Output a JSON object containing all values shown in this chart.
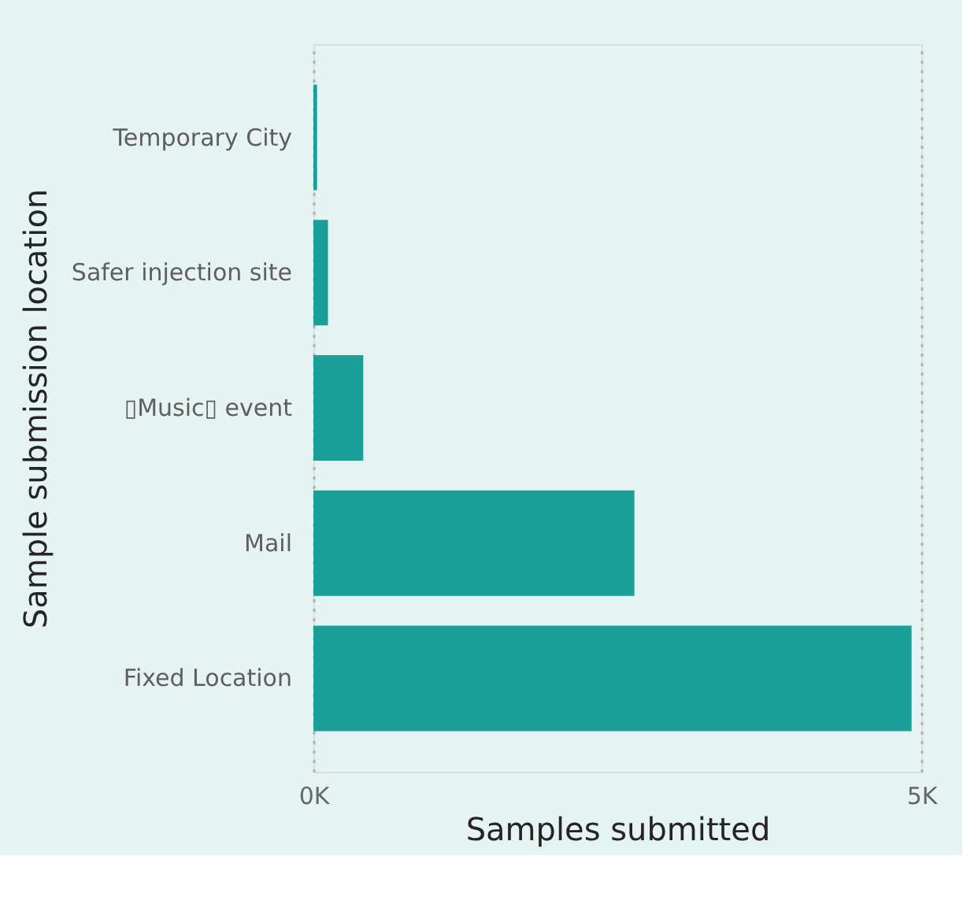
{
  "chart_data": {
    "type": "bar",
    "orientation": "horizontal",
    "xlabel": "Samples submitted",
    "ylabel": "Sample submission location",
    "categories": [
      "Temporary City",
      "Safer injection site",
      "▯Music▯ event",
      "Mail",
      "Fixed Location"
    ],
    "values": [
      30,
      120,
      410,
      2640,
      4920
    ],
    "color": "#1aa098",
    "xlim": [
      0,
      5000
    ],
    "xticks": [
      {
        "value": 0,
        "label": "0K"
      },
      {
        "value": 5000,
        "label": "5K"
      }
    ],
    "grid": "x"
  }
}
